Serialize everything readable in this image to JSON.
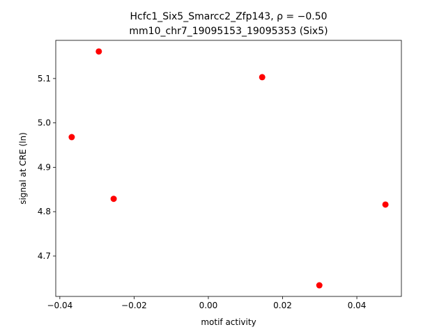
{
  "chart_data": {
    "type": "scatter",
    "title": "Hcfc1_Six5_Smarcc2_Zfp143, ρ = −0.50",
    "subtitle": "mm10_chr7_19095153_19095353 (Six5)",
    "x_label": "motif activity",
    "y_label": "signal at CRE (ln)",
    "series": [
      {
        "color": "#ff0000",
        "x": [
          -0.0295,
          -0.0368,
          -0.0255,
          0.0145,
          0.0299,
          0.0477
        ],
        "values": [
          5.161,
          4.968,
          4.829,
          5.103,
          4.634,
          4.816
        ]
      }
    ],
    "xlim": [
      -0.0411,
      0.052
    ],
    "ylim": [
      4.609,
      5.186
    ],
    "xticks": [
      {
        "value": -0.04,
        "label": "−0.04"
      },
      {
        "value": -0.02,
        "label": "−0.02"
      },
      {
        "value": 0,
        "label": "0.00"
      },
      {
        "value": 0.02,
        "label": "0.02"
      },
      {
        "value": 0.04,
        "label": "0.04"
      }
    ],
    "yticks": [
      4.7,
      4.8,
      4.9,
      {
        "value": 5,
        "label": "5.0"
      },
      5.1
    ],
    "grid": false
  }
}
